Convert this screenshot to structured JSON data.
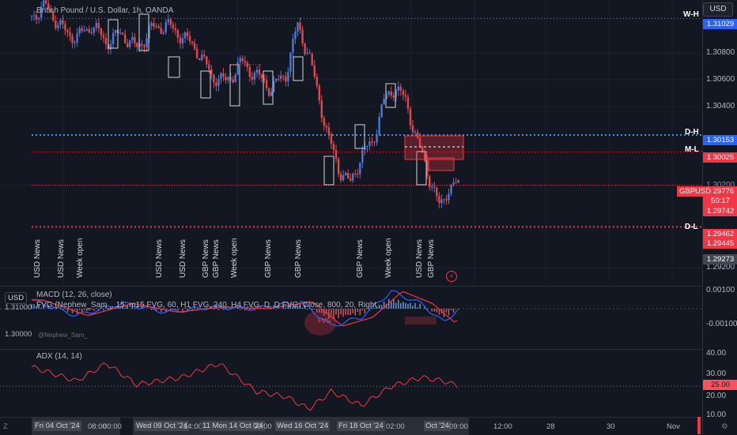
{
  "legend": {
    "symbol": "British Pound / U.S. Dollar, 1h, OANDA"
  },
  "currency": "USD",
  "price_ticks": [
    "1.30800",
    "1.30600",
    "1.30400",
    "1.30200",
    "1.29800",
    "1.29200"
  ],
  "price_tags": {
    "wh": "1.31029",
    "dh": "1.30153",
    "ml": "1.30025",
    "symbol": "GBPUSD",
    "price": "1.29776",
    "countdown": "50:17",
    "low1": "1.29742",
    "dl1": "1.29462",
    "dl2": "1.29445",
    "crosshair": "1.29273"
  },
  "level_labels": {
    "wh": "W-H",
    "dh": "D-H",
    "ml": "M-L",
    "dl": "D-L"
  },
  "news_labels": [
    "USD News",
    "USD News",
    "Week open",
    "USD News",
    "USD News",
    "GBP News",
    "GBP News",
    "Week open",
    "GBP News",
    "GBP News",
    "GBP News",
    "Week open",
    "USD News",
    "GBP News"
  ],
  "macd": {
    "title": "MACD (12, 26, close)",
    "fvg": "FVG (Nephew_Sam_, 15, m15 FVG, 60, H1 FVG, 240, H4 FVG, D, D FVG, Close, 800, 20, Right, Small, Solid)",
    "ticks": [
      "0.00100",
      "-0.00100"
    ],
    "left_ticks": [
      "1.31000",
      "1.30000"
    ],
    "left_currency": "USD",
    "fvg_tag": "FVG",
    "watermark": "@Nephew_Sam_"
  },
  "adx": {
    "title": "ADX (14, 14)",
    "ticks": [
      "40.00",
      "30.00",
      "20.00",
      "10.00"
    ],
    "value_tag": "25.00"
  },
  "time_axis": {
    "labels": [
      "Fri 04 Oct '24",
      "08:00",
      "00:00",
      "Wed 09 Oct '24",
      "14:00",
      "11 Mon 14 Oct '24",
      "00:00",
      "Wed 16 Oct '24",
      "Fri 18 Oct '24",
      "02:00",
      "Oct '24",
      "09:00",
      "12:00",
      "28",
      "30",
      "Nov"
    ]
  },
  "corner_left": "Z",
  "corner_right": "⚙",
  "colors": {
    "bull": "#4a78d4",
    "bear": "#e0484c",
    "dots_blue": "#4c8cf5",
    "dots_red": "#f23645",
    "bg": "#131722"
  },
  "chart_data": {
    "type": "line",
    "title": "British Pound / U.S. Dollar, 1h, OANDA",
    "ylim": [
      1.2915,
      1.3112
    ],
    "levels": {
      "W-H": 1.31029,
      "D-H": 1.30153,
      "M-L": 1.30025,
      "D-L": 1.29462
    },
    "close_points": [
      [
        0,
        1.3105
      ],
      [
        20,
        1.3112
      ],
      [
        40,
        1.3095
      ],
      [
        60,
        1.3088
      ],
      [
        80,
        1.3098
      ],
      [
        100,
        1.3085
      ],
      [
        120,
        1.3092
      ],
      [
        140,
        1.308
      ],
      [
        160,
        1.3095
      ],
      [
        180,
        1.3098
      ],
      [
        200,
        1.309
      ],
      [
        220,
        1.308
      ],
      [
        240,
        1.306
      ],
      [
        260,
        1.3055
      ],
      [
        280,
        1.307
      ],
      [
        300,
        1.306
      ],
      [
        320,
        1.305
      ],
      [
        340,
        1.3062
      ],
      [
        355,
        1.3098
      ],
      [
        370,
        1.3075
      ],
      [
        385,
        1.304
      ],
      [
        395,
        1.3015
      ],
      [
        410,
        1.299
      ],
      [
        425,
        1.2978
      ],
      [
        440,
        1.3
      ],
      [
        455,
        1.301
      ],
      [
        470,
        1.304
      ],
      [
        485,
        1.3052
      ],
      [
        500,
        1.304
      ],
      [
        515,
        1.301
      ],
      [
        530,
        1.2985
      ],
      [
        545,
        1.296
      ],
      [
        555,
        1.2975
      ],
      [
        570,
        1.2978
      ]
    ],
    "macd": [
      [
        0,
        0.0005
      ],
      [
        60,
        -0.0004
      ],
      [
        120,
        0.0003
      ],
      [
        180,
        -0.0002
      ],
      [
        240,
        0.0001
      ],
      [
        300,
        0.0
      ],
      [
        360,
        0.0004
      ],
      [
        400,
        -0.001
      ],
      [
        440,
        -0.0005
      ],
      [
        480,
        0.001
      ],
      [
        520,
        0.0003
      ],
      [
        550,
        -0.0008
      ],
      [
        570,
        0.0
      ]
    ],
    "adx": [
      [
        0,
        36
      ],
      [
        60,
        28
      ],
      [
        100,
        38
      ],
      [
        140,
        26
      ],
      [
        200,
        30
      ],
      [
        250,
        38
      ],
      [
        300,
        22
      ],
      [
        340,
        19
      ],
      [
        370,
        12
      ],
      [
        400,
        22
      ],
      [
        440,
        14
      ],
      [
        480,
        25
      ],
      [
        520,
        30
      ],
      [
        550,
        28
      ],
      [
        570,
        25
      ]
    ]
  }
}
